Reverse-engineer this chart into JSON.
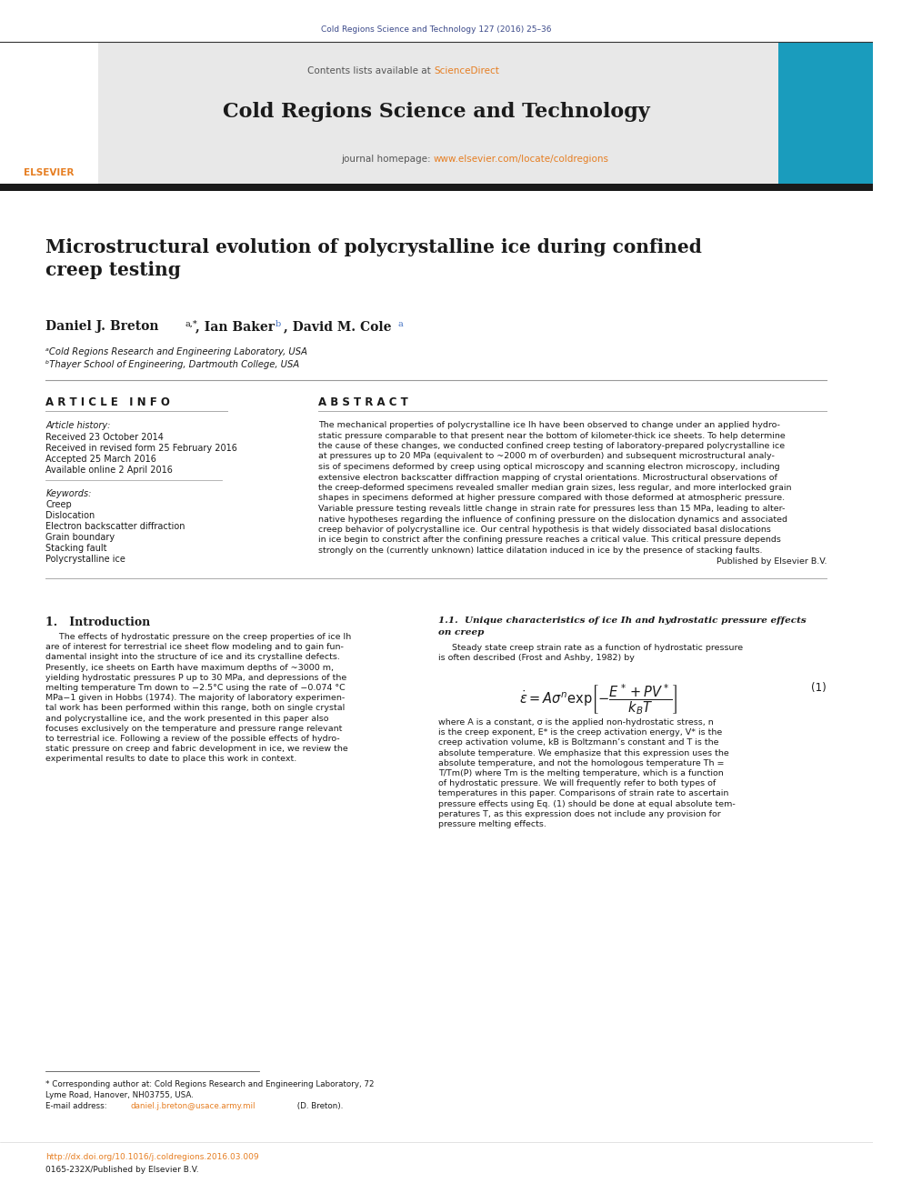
{
  "page_width": 9.92,
  "page_height": 13.23,
  "bg_color": "#ffffff",
  "top_journal_line": "Cold Regions Science and Technology 127 (2016) 25–36",
  "top_journal_color": "#3c4a8a",
  "header_bg": "#e8e8e8",
  "journal_title": "Cold Regions Science and Technology",
  "journal_homepage_url": "www.elsevier.com/locate/coldregions",
  "black_bar_color": "#1a1a1a",
  "article_title": "Microstructural evolution of polycrystalline ice during confined\ncreep testing",
  "affil1": "ᵃCold Regions Research and Engineering Laboratory, USA",
  "affil2": "ᵇThayer School of Engineering, Dartmouth College, USA",
  "received_date": "Received 23 October 2014",
  "revised_date": "Received in revised form 25 February 2016",
  "accepted_date": "Accepted 25 March 2016",
  "available_date": "Available online 2 April 2016",
  "keywords": [
    "Creep",
    "Dislocation",
    "Electron backscatter diffraction",
    "Grain boundary",
    "Stacking fault",
    "Polycrystalline ice"
  ],
  "published_by": "Published by Elsevier B.V.",
  "footer_doi": "http://dx.doi.org/10.1016/j.coldregions.2016.03.009",
  "footer_issn": "0165-232X/Published by Elsevier B.V.",
  "link_color": "#e67e22",
  "ref_color": "#4472c4",
  "header_text_color": "#555555",
  "abstract_lines": [
    "The mechanical properties of polycrystalline ice Ih have been observed to change under an applied hydro-",
    "static pressure comparable to that present near the bottom of kilometer-thick ice sheets. To help determine",
    "the cause of these changes, we conducted confined creep testing of laboratory-prepared polycrystalline ice",
    "at pressures up to 20 MPa (equivalent to ~2000 m of overburden) and subsequent microstructural analy-",
    "sis of specimens deformed by creep using optical microscopy and scanning electron microscopy, including",
    "extensive electron backscatter diffraction mapping of crystal orientations. Microstructural observations of",
    "the creep-deformed specimens revealed smaller median grain sizes, less regular, and more interlocked grain",
    "shapes in specimens deformed at higher pressure compared with those deformed at atmospheric pressure.",
    "Variable pressure testing reveals little change in strain rate for pressures less than 15 MPa, leading to alter-",
    "native hypotheses regarding the influence of confining pressure on the dislocation dynamics and associated",
    "creep behavior of polycrystalline ice. Our central hypothesis is that widely dissociated basal dislocations",
    "in ice begin to constrict after the confining pressure reaches a critical value. This critical pressure depends",
    "strongly on the (currently unknown) lattice dilatation induced in ice by the presence of stacking faults."
  ],
  "intro_lines": [
    "     The effects of hydrostatic pressure on the creep properties of ice Ih",
    "are of interest for terrestrial ice sheet flow modeling and to gain fun-",
    "damental insight into the structure of ice and its crystalline defects.",
    "Presently, ice sheets on Earth have maximum depths of ~3000 m,",
    "yielding hydrostatic pressures P up to 30 MPa, and depressions of the",
    "melting temperature Tm down to −2.5°C using the rate of −0.074 °C",
    "MPa−1 given in Hobbs (1974). The majority of laboratory experimen-",
    "tal work has been performed within this range, both on single crystal",
    "and polycrystalline ice, and the work presented in this paper also",
    "focuses exclusively on the temperature and pressure range relevant",
    "to terrestrial ice. Following a review of the possible effects of hydro-",
    "static pressure on creep and fabric development in ice, we review the",
    "experimental results to date to place this work in context."
  ],
  "right_intro_lines": [
    "     Steady state creep strain rate as a function of hydrostatic pressure",
    "is often described (Frost and Ashby, 1982) by"
  ],
  "where_lines": [
    "where A is a constant, σ is the applied non-hydrostatic stress, n",
    "is the creep exponent, E* is the creep activation energy, V* is the",
    "creep activation volume, kB is Boltzmann’s constant and T is the",
    "absolute temperature. We emphasize that this expression uses the",
    "absolute temperature, and not the homologous temperature Th =",
    "T/Tm(P) where Tm is the melting temperature, which is a function",
    "of hydrostatic pressure. We will frequently refer to both types of",
    "temperatures in this paper. Comparisons of strain rate to ascertain",
    "pressure effects using Eq. (1) should be done at equal absolute tem-",
    "peratures T, as this expression does not include any provision for",
    "pressure melting effects."
  ]
}
